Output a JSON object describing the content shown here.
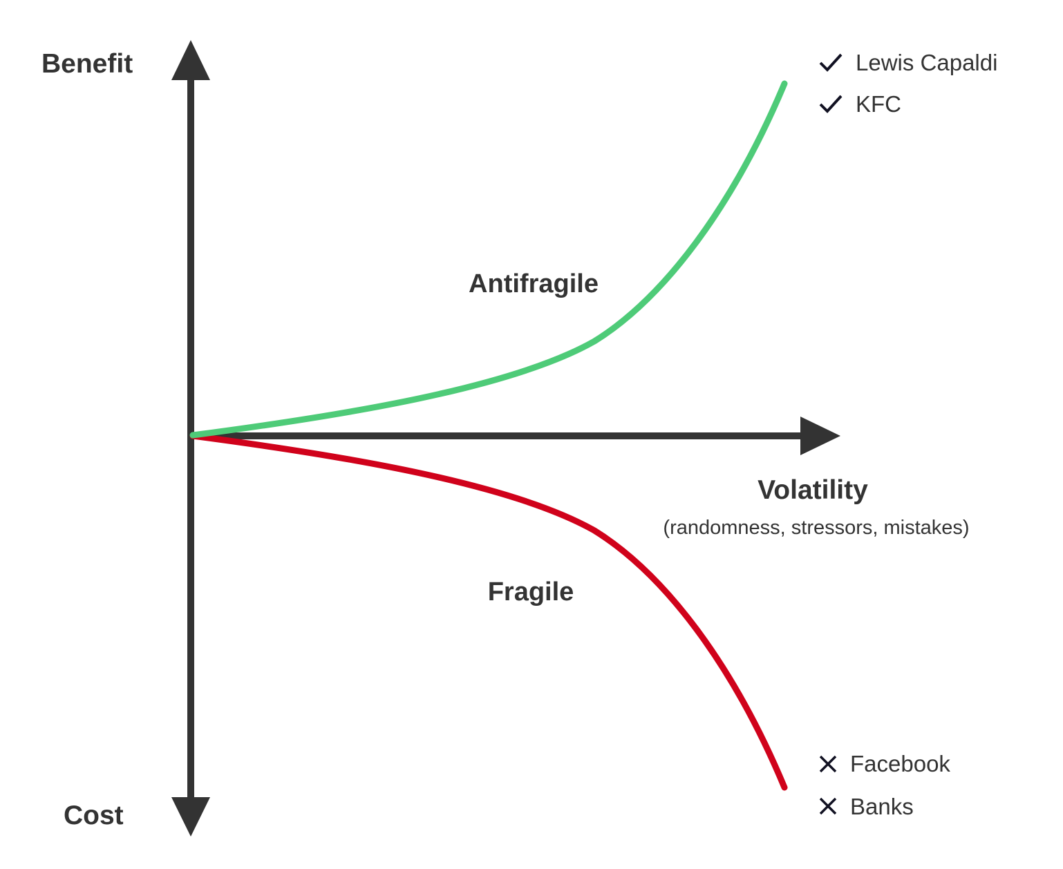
{
  "colors": {
    "axis": "#333333",
    "antifragile_curve": "#4ecb78",
    "fragile_curve": "#d0021b",
    "marker": "#111122"
  },
  "axes": {
    "y_top_label": "Benefit",
    "y_bottom_label": "Cost",
    "x_label": "Volatility",
    "x_sublabel": "(randomness, stressors, mistakes)"
  },
  "regions": {
    "antifragile": "Antifragile",
    "fragile": "Fragile"
  },
  "winners": {
    "icon": "check-icon",
    "items": [
      "Lewis Capaldi",
      "KFC"
    ]
  },
  "losers": {
    "icon": "cross-icon",
    "items": [
      "Facebook",
      "Banks"
    ]
  }
}
